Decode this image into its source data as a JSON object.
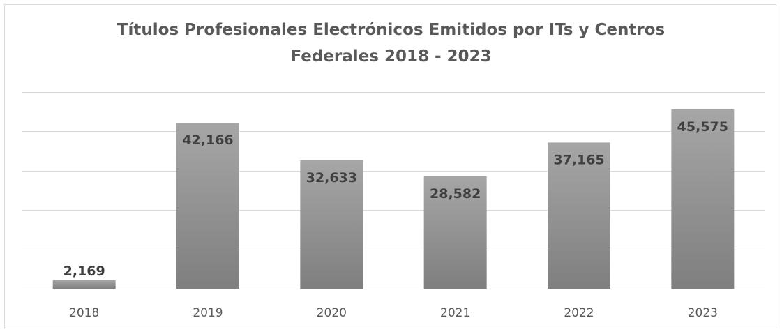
{
  "chart_data": {
    "type": "bar",
    "title": "Títulos Profesionales Electrónicos Emitidos por ITs y Centros Federales 2018 - 2023",
    "title_lines": [
      "Títulos Profesionales Electrónicos Emitidos por ITs y Centros",
      "Federales 2018 - 2023"
    ],
    "categories": [
      "2018",
      "2019",
      "2020",
      "2021",
      "2022",
      "2023"
    ],
    "values": [
      2169,
      42166,
      32633,
      28582,
      37165,
      45575
    ],
    "value_labels": [
      "2,169",
      "42,166",
      "32,633",
      "28,582",
      "37,165",
      "45,575"
    ],
    "xlabel": "",
    "ylabel": "",
    "ylim": [
      0,
      50000
    ],
    "grid": true,
    "legend": "none",
    "colors": {
      "bar_top": "#a6a6a6",
      "bar_bottom": "#7f7f7f",
      "label": "#404040",
      "title": "#595959",
      "grid": "#d9d9d9"
    }
  }
}
